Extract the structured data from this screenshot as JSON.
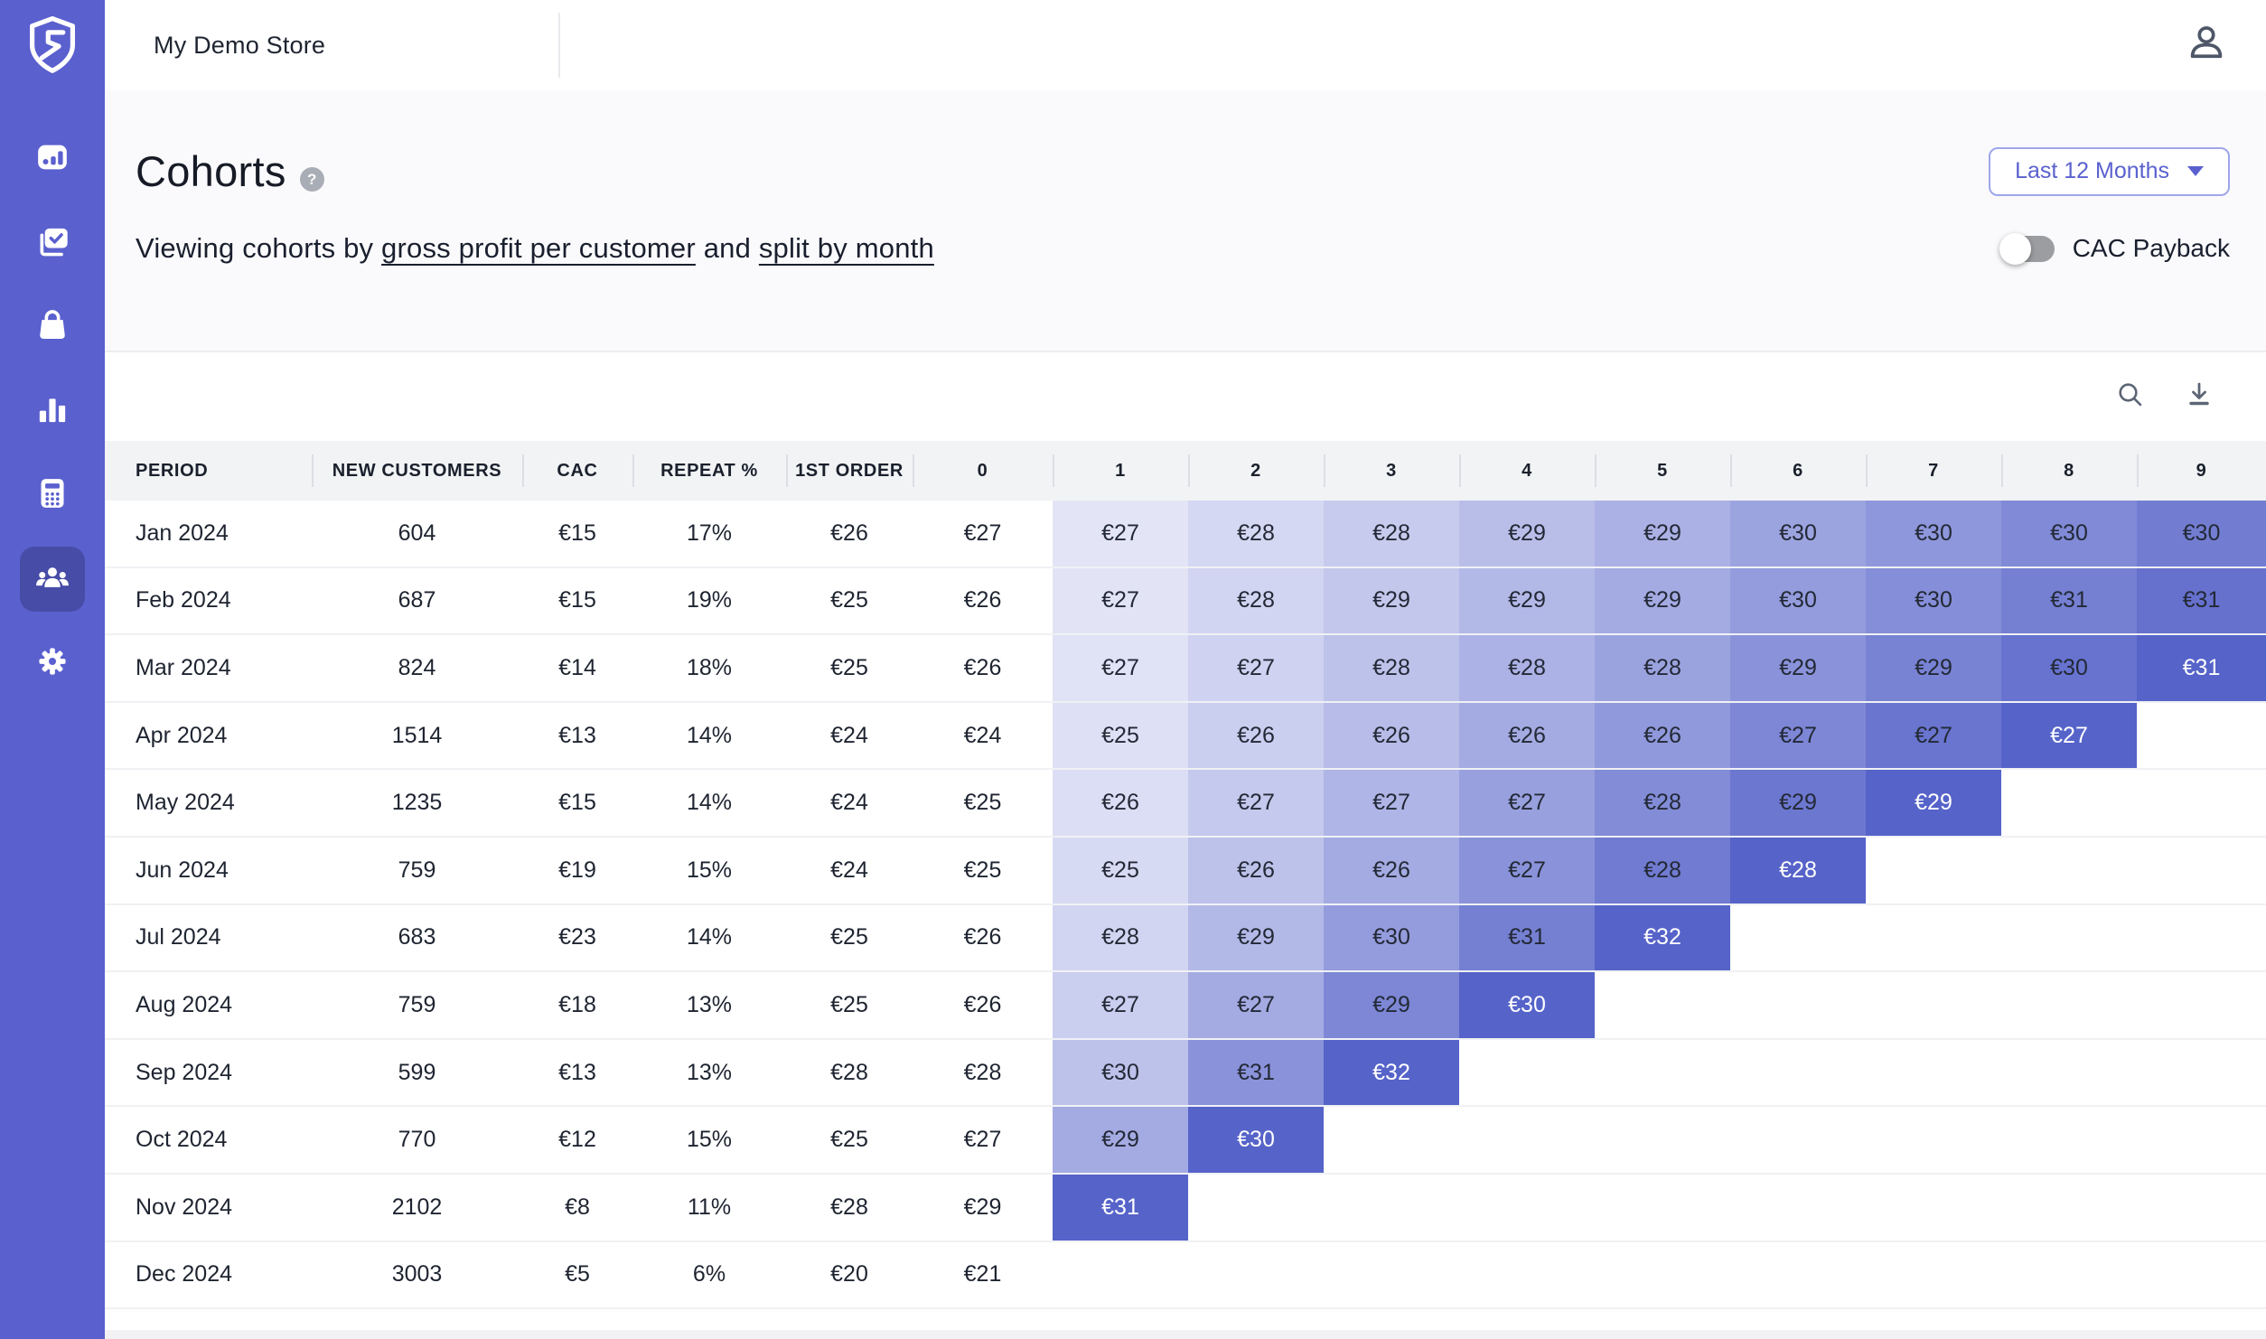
{
  "topbar": {
    "store_name": "My Demo Store",
    "account_icon": "account-icon"
  },
  "sidebar": {
    "logo_icon": "shield-s-logo",
    "items": [
      {
        "name": "dashboard",
        "icon": "dashboard-chart-icon",
        "active": false
      },
      {
        "name": "orders",
        "icon": "orders-check-icon",
        "active": false
      },
      {
        "name": "products",
        "icon": "shopping-bag-icon",
        "active": false
      },
      {
        "name": "analytics",
        "icon": "column-chart-icon",
        "active": false
      },
      {
        "name": "calculator",
        "icon": "calculator-icon",
        "active": false
      },
      {
        "name": "customers",
        "icon": "customers-icon",
        "active": true
      },
      {
        "name": "settings",
        "icon": "gear-icon",
        "active": false
      }
    ]
  },
  "page": {
    "title": "Cohorts",
    "help_glyph": "?",
    "subtitle_prefix": "Viewing cohorts by ",
    "subtitle_link_metric": "gross profit per customer",
    "subtitle_connector": " and ",
    "subtitle_link_split": "split by month",
    "range_button_label": "Last 12 Months",
    "toggle_label": "CAC Payback",
    "toggle_state": "off",
    "tool_icons": [
      "search-icon",
      "download-icon"
    ]
  },
  "table": {
    "headers": {
      "period": "PERIOD",
      "new_customers": "NEW CUSTOMERS",
      "cac": "CAC",
      "repeat": "REPEAT %",
      "first_order": "1ST ORDER"
    },
    "month_columns": [
      "0",
      "1",
      "2",
      "3",
      "4",
      "5",
      "6",
      "7",
      "8",
      "9"
    ],
    "colors": {
      "accent": "#5A61CE",
      "header_bg": "#F2F3F5",
      "cell_ramp_start": "#F1F2FB",
      "cell_ramp_end": "#5663C9",
      "diagonal_cell": "#5663C9",
      "diagonal_text": "#FFFFFF",
      "cell_text": "#232936"
    },
    "rows": [
      {
        "period": "Jan 2024",
        "new_customers": "604",
        "cac": "€15",
        "repeat": "17%",
        "first_order": "€26",
        "month0": "€27",
        "total_periods": 11,
        "values": [
          "€27",
          "€28",
          "€28",
          "€29",
          "€29",
          "€30",
          "€30",
          "€30",
          "€30"
        ]
      },
      {
        "period": "Feb 2024",
        "new_customers": "687",
        "cac": "€15",
        "repeat": "19%",
        "first_order": "€25",
        "month0": "€26",
        "total_periods": 10,
        "values": [
          "€27",
          "€28",
          "€29",
          "€29",
          "€29",
          "€30",
          "€30",
          "€31",
          "€31"
        ]
      },
      {
        "period": "Mar 2024",
        "new_customers": "824",
        "cac": "€14",
        "repeat": "18%",
        "first_order": "€25",
        "month0": "€26",
        "total_periods": 9,
        "values": [
          "€27",
          "€27",
          "€28",
          "€28",
          "€28",
          "€29",
          "€29",
          "€30",
          "€31"
        ]
      },
      {
        "period": "Apr 2024",
        "new_customers": "1514",
        "cac": "€13",
        "repeat": "14%",
        "first_order": "€24",
        "month0": "€24",
        "total_periods": 8,
        "values": [
          "€25",
          "€26",
          "€26",
          "€26",
          "€26",
          "€27",
          "€27",
          "€27"
        ]
      },
      {
        "period": "May 2024",
        "new_customers": "1235",
        "cac": "€15",
        "repeat": "14%",
        "first_order": "€24",
        "month0": "€25",
        "total_periods": 7,
        "values": [
          "€26",
          "€27",
          "€27",
          "€27",
          "€28",
          "€29",
          "€29"
        ]
      },
      {
        "period": "Jun 2024",
        "new_customers": "759",
        "cac": "€19",
        "repeat": "15%",
        "first_order": "€24",
        "month0": "€25",
        "total_periods": 6,
        "values": [
          "€25",
          "€26",
          "€26",
          "€27",
          "€28",
          "€28"
        ]
      },
      {
        "period": "Jul 2024",
        "new_customers": "683",
        "cac": "€23",
        "repeat": "14%",
        "first_order": "€25",
        "month0": "€26",
        "total_periods": 5,
        "values": [
          "€28",
          "€29",
          "€30",
          "€31",
          "€32"
        ]
      },
      {
        "period": "Aug 2024",
        "new_customers": "759",
        "cac": "€18",
        "repeat": "13%",
        "first_order": "€25",
        "month0": "€26",
        "total_periods": 4,
        "values": [
          "€27",
          "€27",
          "€29",
          "€30"
        ]
      },
      {
        "period": "Sep 2024",
        "new_customers": "599",
        "cac": "€13",
        "repeat": "13%",
        "first_order": "€28",
        "month0": "€28",
        "total_periods": 3,
        "values": [
          "€30",
          "€31",
          "€32"
        ]
      },
      {
        "period": "Oct 2024",
        "new_customers": "770",
        "cac": "€12",
        "repeat": "15%",
        "first_order": "€25",
        "month0": "€27",
        "total_periods": 2,
        "values": [
          "€29",
          "€30"
        ]
      },
      {
        "period": "Nov 2024",
        "new_customers": "2102",
        "cac": "€8",
        "repeat": "11%",
        "first_order": "€28",
        "month0": "€29",
        "total_periods": 1,
        "values": [
          "€31"
        ]
      },
      {
        "period": "Dec 2024",
        "new_customers": "3003",
        "cac": "€5",
        "repeat": "6%",
        "first_order": "€20",
        "month0": "€21",
        "total_periods": 0,
        "values": []
      }
    ]
  }
}
